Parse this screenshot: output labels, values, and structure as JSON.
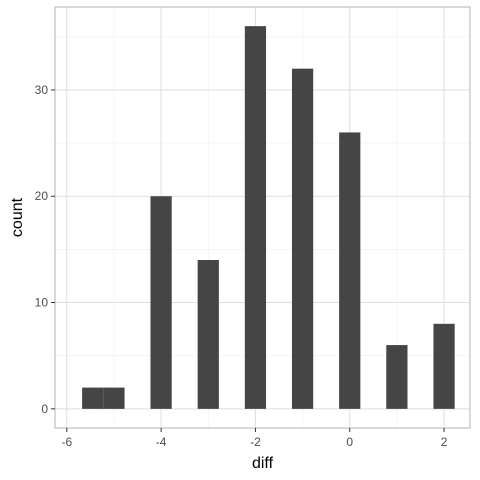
{
  "chart_data": {
    "type": "bar",
    "title": "",
    "xlabel": "diff",
    "ylabel": "count",
    "xlim": [
      -6.25,
      2.55
    ],
    "ylim": [
      -1.8,
      37.8
    ],
    "x_ticks": [
      -6,
      -4,
      -2,
      0,
      2
    ],
    "y_ticks": [
      0,
      10,
      20,
      30
    ],
    "bar_width": 0.45,
    "bars": [
      {
        "x": -5.45,
        "value": 2
      },
      {
        "x": -5.0,
        "value": 2
      },
      {
        "x": -4.0,
        "value": 20
      },
      {
        "x": -3.0,
        "value": 14
      },
      {
        "x": -2.0,
        "value": 36
      },
      {
        "x": -1.0,
        "value": 32
      },
      {
        "x": 0.0,
        "value": 26
      },
      {
        "x": 1.0,
        "value": 6
      },
      {
        "x": 2.0,
        "value": 8
      }
    ],
    "grid": true,
    "legend": "none",
    "colors": {
      "bar": "#454545",
      "grid_major": "#dedede",
      "grid_minor": "#efefef",
      "panel_border": "#b3b3b3",
      "background": "#ffffff"
    }
  }
}
